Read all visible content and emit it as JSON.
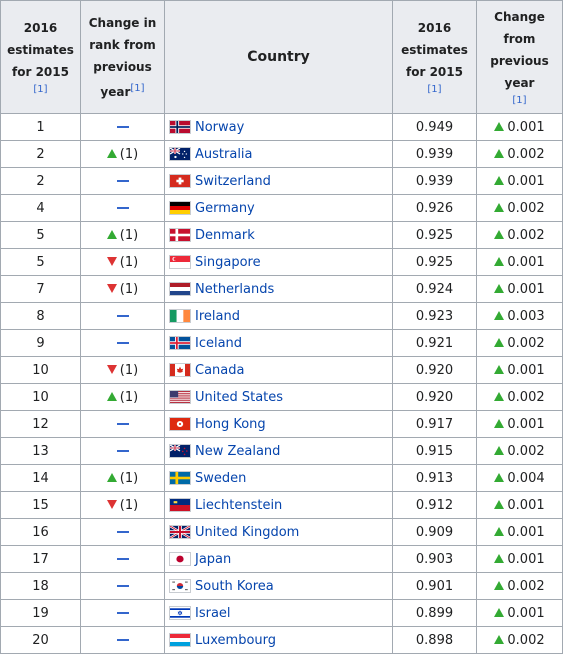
{
  "header": {
    "rank_col": [
      "2016",
      "estimates",
      "for 2015"
    ],
    "rank_ref": "[1]",
    "change_col": [
      "Change in",
      "rank from",
      "previous",
      "year"
    ],
    "change_ref": "[1]",
    "country_col": "Country",
    "hdi_col": [
      "2016",
      "estimates",
      "for 2015"
    ],
    "hdi_ref": "[1]",
    "delta_col": [
      "Change",
      "from",
      "previous",
      "year"
    ],
    "delta_ref": "[1]"
  },
  "colors": {
    "up": "#33aa33",
    "down": "#dd3333",
    "nochange": "#3366cc",
    "link": "#0645ad",
    "header_bg": "#eaecf0",
    "border": "#a2a9b1"
  },
  "rows": [
    {
      "rank": "1",
      "change": "none",
      "change_label": "",
      "country": "Norway",
      "flag": "norway-flag",
      "hdi": "0.949",
      "delta": "0.001"
    },
    {
      "rank": "2",
      "change": "up",
      "change_label": "(1)",
      "country": "Australia",
      "flag": "australia-flag",
      "hdi": "0.939",
      "delta": "0.002"
    },
    {
      "rank": "2",
      "change": "none",
      "change_label": "",
      "country": "Switzerland",
      "flag": "switzerland-flag",
      "hdi": "0.939",
      "delta": "0.001"
    },
    {
      "rank": "4",
      "change": "none",
      "change_label": "",
      "country": "Germany",
      "flag": "germany-flag",
      "hdi": "0.926",
      "delta": "0.002"
    },
    {
      "rank": "5",
      "change": "up",
      "change_label": "(1)",
      "country": "Denmark",
      "flag": "denmark-flag",
      "hdi": "0.925",
      "delta": "0.002"
    },
    {
      "rank": "5",
      "change": "down",
      "change_label": "(1)",
      "country": "Singapore",
      "flag": "singapore-flag",
      "hdi": "0.925",
      "delta": "0.001"
    },
    {
      "rank": "7",
      "change": "down",
      "change_label": "(1)",
      "country": "Netherlands",
      "flag": "netherlands-flag",
      "hdi": "0.924",
      "delta": "0.001"
    },
    {
      "rank": "8",
      "change": "none",
      "change_label": "",
      "country": "Ireland",
      "flag": "ireland-flag",
      "hdi": "0.923",
      "delta": "0.003"
    },
    {
      "rank": "9",
      "change": "none",
      "change_label": "",
      "country": "Iceland",
      "flag": "iceland-flag",
      "hdi": "0.921",
      "delta": "0.002"
    },
    {
      "rank": "10",
      "change": "down",
      "change_label": "(1)",
      "country": "Canada",
      "flag": "canada-flag",
      "hdi": "0.920",
      "delta": "0.001"
    },
    {
      "rank": "10",
      "change": "up",
      "change_label": "(1)",
      "country": "United States",
      "flag": "united-states-flag",
      "hdi": "0.920",
      "delta": "0.002"
    },
    {
      "rank": "12",
      "change": "none",
      "change_label": "",
      "country": "Hong Kong",
      "flag": "hong-kong-flag",
      "hdi": "0.917",
      "delta": "0.001"
    },
    {
      "rank": "13",
      "change": "none",
      "change_label": "",
      "country": "New Zealand",
      "flag": "new-zealand-flag",
      "hdi": "0.915",
      "delta": "0.002"
    },
    {
      "rank": "14",
      "change": "up",
      "change_label": "(1)",
      "country": "Sweden",
      "flag": "sweden-flag",
      "hdi": "0.913",
      "delta": "0.004"
    },
    {
      "rank": "15",
      "change": "down",
      "change_label": "(1)",
      "country": "Liechtenstein",
      "flag": "liechtenstein-flag",
      "hdi": "0.912",
      "delta": "0.001"
    },
    {
      "rank": "16",
      "change": "none",
      "change_label": "",
      "country": "United Kingdom",
      "flag": "united-kingdom-flag",
      "hdi": "0.909",
      "delta": "0.001"
    },
    {
      "rank": "17",
      "change": "none",
      "change_label": "",
      "country": "Japan",
      "flag": "japan-flag",
      "hdi": "0.903",
      "delta": "0.001"
    },
    {
      "rank": "18",
      "change": "none",
      "change_label": "",
      "country": "South Korea",
      "flag": "south-korea-flag",
      "hdi": "0.901",
      "delta": "0.002"
    },
    {
      "rank": "19",
      "change": "none",
      "change_label": "",
      "country": "Israel",
      "flag": "israel-flag",
      "hdi": "0.899",
      "delta": "0.001"
    },
    {
      "rank": "20",
      "change": "none",
      "change_label": "",
      "country": "Luxembourg",
      "flag": "luxembourg-flag",
      "hdi": "0.898",
      "delta": "0.002"
    }
  ]
}
